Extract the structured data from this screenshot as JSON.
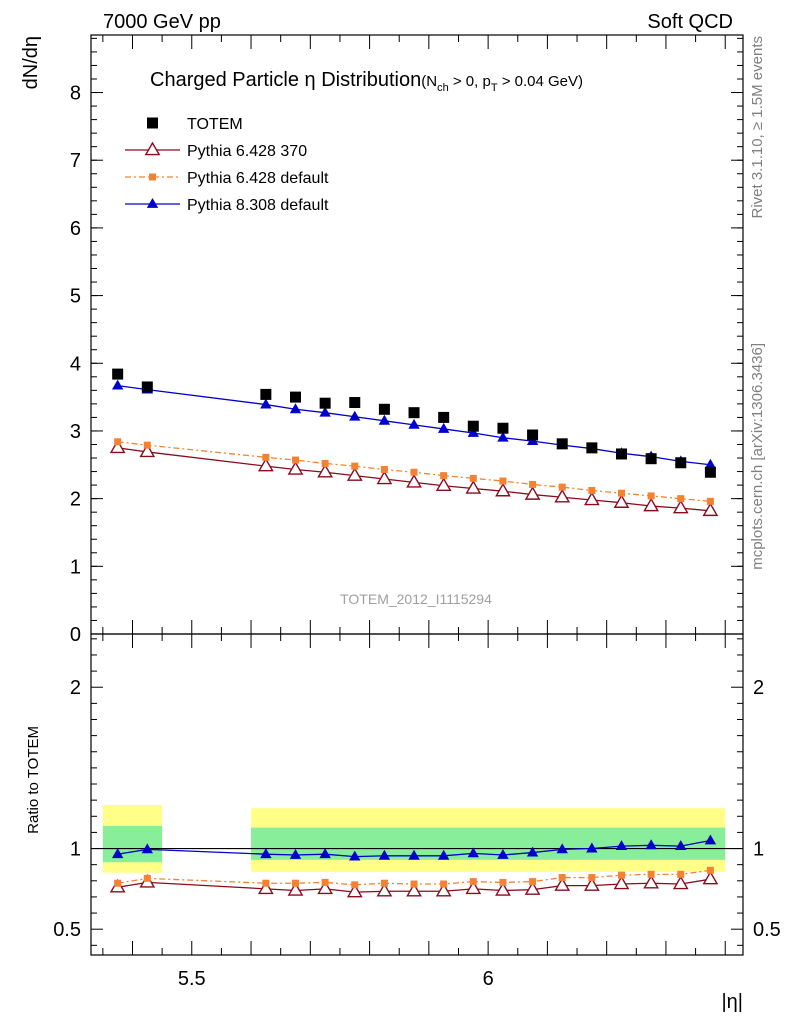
{
  "header": {
    "left": "7000 GeV pp",
    "right": "Soft QCD"
  },
  "side_labels": {
    "rivet": "Rivet 3.1.10, ≥ 1.5M events",
    "mcplots": "mcplots.cern.ch [arXiv:1306.3436]"
  },
  "watermark": "TOTEM_2012_I1115294",
  "title": {
    "main": "Charged Particle η Distribution",
    "cuts": {
      "open": "(N",
      "n_sub": "ch",
      "mid": " > 0, p",
      "p_sub": "T",
      "close": " > 0.04 GeV)"
    }
  },
  "chart_data": {
    "type": "line",
    "xlabel": "|η|",
    "ylabel_top": "dN/dη",
    "ylabel_bottom": "Ratio to TOTEM",
    "xlim": [
      5.33,
      6.43
    ],
    "ylim_top": [
      0,
      8.85
    ],
    "ylim_bottom": [
      0.34,
      2.33
    ],
    "x_ticks": [
      {
        "value": 5.5,
        "label": "5.5"
      },
      {
        "value": 6.0,
        "label": "6"
      }
    ],
    "y_ticks_top": [
      {
        "value": 0,
        "label": "0"
      },
      {
        "value": 1,
        "label": "1"
      },
      {
        "value": 2,
        "label": "2"
      },
      {
        "value": 3,
        "label": "3"
      },
      {
        "value": 4,
        "label": "4"
      },
      {
        "value": 5,
        "label": "5"
      },
      {
        "value": 6,
        "label": "6"
      },
      {
        "value": 7,
        "label": "7"
      },
      {
        "value": 8,
        "label": "8"
      }
    ],
    "y_ticks_bottom": [
      {
        "value": 0.5,
        "label": "0.5"
      },
      {
        "value": 1,
        "label": "1"
      },
      {
        "value": 2,
        "label": "2"
      }
    ],
    "reference_line": 1.0,
    "data": {
      "name": "TOTEM",
      "color": "#000000",
      "x": [
        5.375,
        5.425,
        5.625,
        5.675,
        5.725,
        5.775,
        5.825,
        5.875,
        5.925,
        5.975,
        6.025,
        6.075,
        6.125,
        6.175,
        6.225,
        6.275,
        6.325,
        6.375
      ],
      "y": [
        3.84,
        3.65,
        3.54,
        3.5,
        3.41,
        3.42,
        3.32,
        3.27,
        3.2,
        3.07,
        3.04,
        2.94,
        2.81,
        2.75,
        2.66,
        2.59,
        2.53,
        2.39
      ]
    },
    "bands": [
      {
        "x_from": 5.35,
        "x_to": 5.45,
        "yellow": [
          0.85,
          1.27
        ],
        "green": [
          0.915,
          1.14
        ]
      },
      {
        "x_from": 5.6,
        "x_to": 6.4,
        "yellow": [
          0.855,
          1.25
        ],
        "green": [
          0.93,
          1.13
        ]
      }
    ],
    "band_colors": {
      "yellow": "#ffff88",
      "green": "#88ee99"
    },
    "series": [
      {
        "name": "Pythia 6.428 370",
        "color": "#8b0a1e",
        "marker": "open-triangle",
        "line": "solid",
        "x": [
          5.375,
          5.425,
          5.625,
          5.675,
          5.725,
          5.775,
          5.825,
          5.875,
          5.925,
          5.975,
          6.025,
          6.075,
          6.125,
          6.175,
          6.225,
          6.275,
          6.325,
          6.375
        ],
        "y": [
          2.75,
          2.69,
          2.48,
          2.43,
          2.39,
          2.34,
          2.29,
          2.24,
          2.19,
          2.15,
          2.11,
          2.06,
          2.02,
          1.98,
          1.94,
          1.89,
          1.86,
          1.82
        ],
        "ratio": [
          0.76,
          0.79,
          0.75,
          0.74,
          0.75,
          0.73,
          0.735,
          0.735,
          0.735,
          0.75,
          0.74,
          0.745,
          0.77,
          0.77,
          0.78,
          0.785,
          0.78,
          0.81
        ]
      },
      {
        "name": "Pythia 6.428 default",
        "color": "#f58231",
        "marker": "square",
        "line": "dashdot",
        "x": [
          5.375,
          5.425,
          5.625,
          5.675,
          5.725,
          5.775,
          5.825,
          5.875,
          5.925,
          5.975,
          6.025,
          6.075,
          6.125,
          6.175,
          6.225,
          6.275,
          6.325,
          6.375
        ],
        "y": [
          2.84,
          2.79,
          2.61,
          2.57,
          2.52,
          2.48,
          2.43,
          2.39,
          2.34,
          2.3,
          2.26,
          2.21,
          2.17,
          2.12,
          2.08,
          2.04,
          2.0,
          1.96
        ],
        "ratio": [
          0.785,
          0.815,
          0.785,
          0.785,
          0.79,
          0.775,
          0.785,
          0.78,
          0.78,
          0.795,
          0.79,
          0.795,
          0.82,
          0.82,
          0.835,
          0.84,
          0.84,
          0.865
        ]
      },
      {
        "name": "Pythia 8.308 default",
        "color": "#0000cc",
        "marker": "triangle",
        "line": "solid",
        "x": [
          5.375,
          5.425,
          5.625,
          5.675,
          5.725,
          5.775,
          5.825,
          5.875,
          5.925,
          5.975,
          6.025,
          6.075,
          6.125,
          6.175,
          6.225,
          6.275,
          6.325,
          6.375
        ],
        "y": [
          3.67,
          3.61,
          3.39,
          3.32,
          3.27,
          3.21,
          3.15,
          3.09,
          3.03,
          2.97,
          2.9,
          2.85,
          2.79,
          2.74,
          2.67,
          2.62,
          2.55,
          2.5
        ],
        "ratio": [
          0.965,
          0.995,
          0.965,
          0.96,
          0.965,
          0.95,
          0.955,
          0.955,
          0.955,
          0.97,
          0.96,
          0.975,
          0.995,
          1.0,
          1.015,
          1.02,
          1.015,
          1.05
        ]
      }
    ]
  }
}
